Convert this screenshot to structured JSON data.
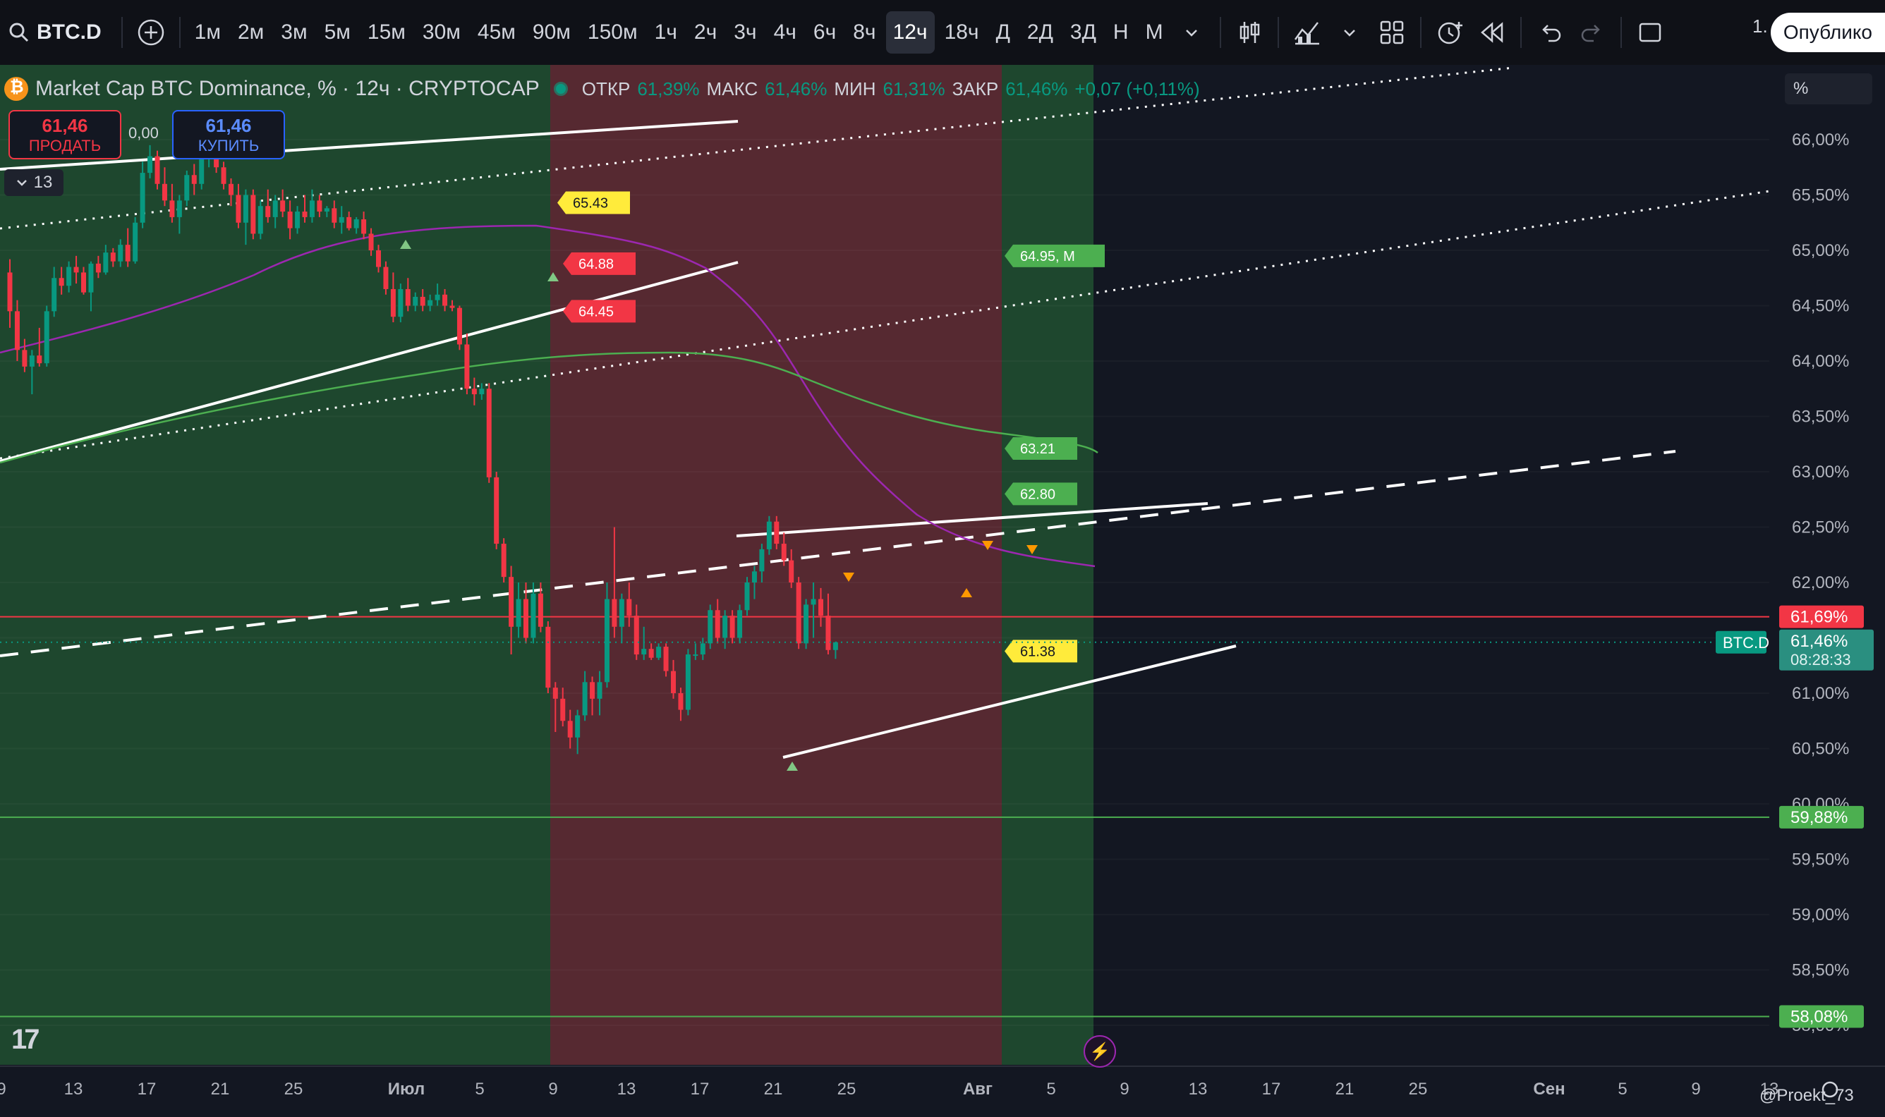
{
  "toolbar": {
    "symbol": "BTC.D",
    "timeframes": [
      {
        "label": "1м",
        "active": false
      },
      {
        "label": "2м",
        "active": false
      },
      {
        "label": "3м",
        "active": false
      },
      {
        "label": "5м",
        "active": false
      },
      {
        "label": "15м",
        "active": false
      },
      {
        "label": "30м",
        "active": false
      },
      {
        "label": "45м",
        "active": false
      },
      {
        "label": "90м",
        "active": false
      },
      {
        "label": "150м",
        "active": false
      },
      {
        "label": "1ч",
        "active": false
      },
      {
        "label": "2ч",
        "active": false
      },
      {
        "label": "3ч",
        "active": false
      },
      {
        "label": "4ч",
        "active": false
      },
      {
        "label": "6ч",
        "active": false
      },
      {
        "label": "8ч",
        "active": false
      },
      {
        "label": "12ч",
        "active": true
      },
      {
        "label": "18ч",
        "active": false
      },
      {
        "label": "Д",
        "active": false
      },
      {
        "label": "2Д",
        "active": false
      },
      {
        "label": "3Д",
        "active": false
      },
      {
        "label": "Н",
        "active": false
      },
      {
        "label": "М",
        "active": false
      }
    ],
    "layout_count": "1.",
    "publish_label": "Опублико"
  },
  "legend": {
    "title": "Market Cap BTC Dominance, % · 12ч · CRYPTOCAP",
    "open_label": "ОТКР",
    "open_value": "61,39%",
    "high_label": "МАКС",
    "high_value": "61,46%",
    "low_label": "МИН",
    "low_value": "61,31%",
    "close_label": "ЗАКР",
    "close_value": "61,46%",
    "change": "+0,07 (+0,11%)"
  },
  "trade": {
    "sell_price": "61,46",
    "sell_label": "ПРОДАТЬ",
    "spread": "0,00",
    "buy_price": "61,46",
    "buy_label": "КУПИТЬ"
  },
  "indicators_collapsed_count": "13",
  "price_scale_unit": "%",
  "credit": "@Proekt_73",
  "colors": {
    "up": "#089981",
    "down": "#f23645",
    "bg": "#131722",
    "green_zone": "#1f4a2f",
    "red_zone": "#5a2a33"
  },
  "chart_data": {
    "type": "candlestick",
    "symbol_tag": "BTC.D",
    "y_ticks": [
      "66,00%",
      "65,50%",
      "65,00%",
      "64,50%",
      "64,00%",
      "63,50%",
      "63,00%",
      "62,50%",
      "62,00%",
      "61,50%",
      "61,00%",
      "60,50%",
      "60,00%",
      "59,50%",
      "59,00%",
      "58,50%",
      "58,00%"
    ],
    "y_tick_values": [
      66.0,
      65.5,
      65.0,
      64.5,
      64.0,
      63.5,
      63.0,
      62.5,
      62.0,
      61.5,
      61.0,
      60.5,
      60.0,
      59.5,
      59.0,
      58.5,
      58.0
    ],
    "ylim": [
      57.75,
      66.6
    ],
    "x_ticks": [
      "9",
      "13",
      "17",
      "21",
      "25",
      "Июл",
      "5",
      "9",
      "13",
      "17",
      "21",
      "25",
      "Авг",
      "5",
      "9",
      "13",
      "17",
      "21",
      "25",
      "Сен",
      "5",
      "9",
      "13"
    ],
    "horizontal_levels": [
      {
        "value": 61.69,
        "label": "61,69%",
        "color": "#f23645"
      },
      {
        "value": 59.88,
        "label": "59,88%",
        "color": "#4caf50"
      },
      {
        "value": 58.08,
        "label": "58,08%",
        "color": "#4caf50"
      }
    ],
    "last_price": {
      "label": "61,46%",
      "value": 61.46,
      "countdown": "08:28:33"
    },
    "zones": [
      {
        "color": "green",
        "from": "2024-06-07",
        "to": "2024-07-09"
      },
      {
        "color": "red",
        "from": "2024-07-09",
        "to": "2024-08-03"
      },
      {
        "color": "green",
        "from": "2024-08-03",
        "to": "2024-08-08"
      }
    ],
    "annotations": [
      {
        "text": "65.43",
        "value": 65.43,
        "color": "#ffeb3b"
      },
      {
        "text": "64.88",
        "value": 64.88,
        "color": "#f23645"
      },
      {
        "text": "64.45",
        "value": 64.45,
        "color": "#f23645"
      },
      {
        "text": "64.95, M",
        "value": 64.95,
        "color": "#4caf50"
      },
      {
        "text": "63.21",
        "value": 63.21,
        "color": "#4caf50"
      },
      {
        "text": "62.80",
        "value": 62.8,
        "color": "#4caf50"
      },
      {
        "text": "61.38",
        "value": 61.38,
        "color": "#ffeb3b"
      }
    ],
    "candles": [
      {
        "o": 64.8,
        "h": 64.92,
        "l": 64.3,
        "c": 64.45
      },
      {
        "o": 64.45,
        "h": 64.55,
        "l": 64.0,
        "c": 64.1
      },
      {
        "o": 64.1,
        "h": 64.2,
        "l": 63.9,
        "c": 63.95
      },
      {
        "o": 63.95,
        "h": 64.1,
        "l": 63.7,
        "c": 64.05
      },
      {
        "o": 64.05,
        "h": 64.3,
        "l": 63.95,
        "c": 63.98
      },
      {
        "o": 63.98,
        "h": 64.5,
        "l": 63.95,
        "c": 64.45
      },
      {
        "o": 64.45,
        "h": 64.85,
        "l": 64.4,
        "c": 64.75
      },
      {
        "o": 64.75,
        "h": 64.85,
        "l": 64.6,
        "c": 64.68
      },
      {
        "o": 64.68,
        "h": 64.9,
        "l": 64.62,
        "c": 64.85
      },
      {
        "o": 64.85,
        "h": 64.95,
        "l": 64.7,
        "c": 64.8
      },
      {
        "o": 64.8,
        "h": 64.85,
        "l": 64.6,
        "c": 64.62
      },
      {
        "o": 64.62,
        "h": 64.9,
        "l": 64.45,
        "c": 64.88
      },
      {
        "o": 64.88,
        "h": 64.95,
        "l": 64.75,
        "c": 64.8
      },
      {
        "o": 64.8,
        "h": 65.05,
        "l": 64.78,
        "c": 64.98
      },
      {
        "o": 64.98,
        "h": 65.02,
        "l": 64.85,
        "c": 64.9
      },
      {
        "o": 64.9,
        "h": 65.1,
        "l": 64.85,
        "c": 65.05
      },
      {
        "o": 65.05,
        "h": 65.2,
        "l": 64.85,
        "c": 64.9
      },
      {
        "o": 64.9,
        "h": 65.3,
        "l": 64.88,
        "c": 65.25
      },
      {
        "o": 65.25,
        "h": 65.8,
        "l": 65.2,
        "c": 65.7
      },
      {
        "o": 65.7,
        "h": 65.95,
        "l": 65.65,
        "c": 65.85
      },
      {
        "o": 65.85,
        "h": 65.9,
        "l": 65.55,
        "c": 65.6
      },
      {
        "o": 65.6,
        "h": 65.75,
        "l": 65.4,
        "c": 65.45
      },
      {
        "o": 65.45,
        "h": 65.6,
        "l": 65.25,
        "c": 65.3
      },
      {
        "o": 65.3,
        "h": 65.5,
        "l": 65.15,
        "c": 65.45
      },
      {
        "o": 65.45,
        "h": 65.72,
        "l": 65.4,
        "c": 65.68
      },
      {
        "o": 65.68,
        "h": 65.78,
        "l": 65.5,
        "c": 65.6
      },
      {
        "o": 65.6,
        "h": 65.9,
        "l": 65.55,
        "c": 65.85
      },
      {
        "o": 65.85,
        "h": 66.0,
        "l": 65.75,
        "c": 65.9
      },
      {
        "o": 65.9,
        "h": 65.95,
        "l": 65.7,
        "c": 65.75
      },
      {
        "o": 65.75,
        "h": 65.8,
        "l": 65.55,
        "c": 65.6
      },
      {
        "o": 65.6,
        "h": 65.65,
        "l": 65.4,
        "c": 65.5
      },
      {
        "o": 65.5,
        "h": 65.6,
        "l": 65.2,
        "c": 65.25
      },
      {
        "o": 65.25,
        "h": 65.55,
        "l": 65.05,
        "c": 65.5
      },
      {
        "o": 65.5,
        "h": 65.55,
        "l": 65.1,
        "c": 65.15
      },
      {
        "o": 65.15,
        "h": 65.45,
        "l": 65.1,
        "c": 65.4
      },
      {
        "o": 65.4,
        "h": 65.55,
        "l": 65.25,
        "c": 65.3
      },
      {
        "o": 65.3,
        "h": 65.5,
        "l": 65.2,
        "c": 65.45
      },
      {
        "o": 65.45,
        "h": 65.55,
        "l": 65.3,
        "c": 65.35
      },
      {
        "o": 65.35,
        "h": 65.45,
        "l": 65.1,
        "c": 65.2
      },
      {
        "o": 65.2,
        "h": 65.4,
        "l": 65.15,
        "c": 65.35
      },
      {
        "o": 65.35,
        "h": 65.5,
        "l": 65.25,
        "c": 65.3
      },
      {
        "o": 65.3,
        "h": 65.55,
        "l": 65.25,
        "c": 65.45
      },
      {
        "o": 65.45,
        "h": 65.5,
        "l": 65.3,
        "c": 65.35
      },
      {
        "o": 65.35,
        "h": 65.4,
        "l": 65.3,
        "c": 65.38
      },
      {
        "o": 65.38,
        "h": 65.45,
        "l": 65.2,
        "c": 65.25
      },
      {
        "o": 65.25,
        "h": 65.4,
        "l": 65.15,
        "c": 65.3
      },
      {
        "o": 65.3,
        "h": 65.35,
        "l": 65.18,
        "c": 65.2
      },
      {
        "o": 65.2,
        "h": 65.3,
        "l": 65.15,
        "c": 65.28
      },
      {
        "o": 65.28,
        "h": 65.35,
        "l": 65.1,
        "c": 65.15
      },
      {
        "o": 65.15,
        "h": 65.2,
        "l": 64.95,
        "c": 65.0
      },
      {
        "o": 65.0,
        "h": 65.05,
        "l": 64.8,
        "c": 64.85
      },
      {
        "o": 64.85,
        "h": 64.9,
        "l": 64.6,
        "c": 64.65
      },
      {
        "o": 64.65,
        "h": 64.8,
        "l": 64.35,
        "c": 64.4
      },
      {
        "o": 64.4,
        "h": 64.7,
        "l": 64.35,
        "c": 64.65
      },
      {
        "o": 64.65,
        "h": 64.75,
        "l": 64.45,
        "c": 64.5
      },
      {
        "o": 64.5,
        "h": 64.62,
        "l": 64.45,
        "c": 64.58
      },
      {
        "o": 64.58,
        "h": 64.65,
        "l": 64.45,
        "c": 64.5
      },
      {
        "o": 64.5,
        "h": 64.6,
        "l": 64.45,
        "c": 64.55
      },
      {
        "o": 64.55,
        "h": 64.7,
        "l": 64.5,
        "c": 64.6
      },
      {
        "o": 64.6,
        "h": 64.65,
        "l": 64.45,
        "c": 64.5
      },
      {
        "o": 64.5,
        "h": 64.55,
        "l": 64.45,
        "c": 64.48
      },
      {
        "o": 64.48,
        "h": 64.5,
        "l": 64.1,
        "c": 64.15
      },
      {
        "o": 64.15,
        "h": 64.25,
        "l": 63.7,
        "c": 63.75
      },
      {
        "o": 63.75,
        "h": 63.85,
        "l": 63.6,
        "c": 63.7
      },
      {
        "o": 63.7,
        "h": 63.8,
        "l": 63.65,
        "c": 63.75
      },
      {
        "o": 63.75,
        "h": 63.8,
        "l": 62.9,
        "c": 62.95
      },
      {
        "o": 62.95,
        "h": 63.0,
        "l": 62.3,
        "c": 62.35
      },
      {
        "o": 62.35,
        "h": 62.4,
        "l": 62.0,
        "c": 62.05
      },
      {
        "o": 62.05,
        "h": 62.15,
        "l": 61.35,
        "c": 61.6
      },
      {
        "o": 61.6,
        "h": 62.0,
        "l": 61.5,
        "c": 61.85
      },
      {
        "o": 61.85,
        "h": 62.0,
        "l": 61.45,
        "c": 61.5
      },
      {
        "o": 61.5,
        "h": 62.0,
        "l": 61.45,
        "c": 61.9
      },
      {
        "o": 61.9,
        "h": 62.0,
        "l": 61.55,
        "c": 61.6
      },
      {
        "o": 61.6,
        "h": 61.65,
        "l": 61.0,
        "c": 61.05
      },
      {
        "o": 61.05,
        "h": 61.1,
        "l": 60.65,
        "c": 60.95
      },
      {
        "o": 60.95,
        "h": 61.05,
        "l": 60.7,
        "c": 60.75
      },
      {
        "o": 60.75,
        "h": 60.85,
        "l": 60.5,
        "c": 60.6
      },
      {
        "o": 60.6,
        "h": 60.85,
        "l": 60.45,
        "c": 60.8
      },
      {
        "o": 60.8,
        "h": 61.2,
        "l": 60.75,
        "c": 61.1
      },
      {
        "o": 61.1,
        "h": 61.15,
        "l": 60.8,
        "c": 60.95
      },
      {
        "o": 60.95,
        "h": 61.2,
        "l": 60.8,
        "c": 61.1
      },
      {
        "o": 61.1,
        "h": 62.0,
        "l": 61.05,
        "c": 61.85
      },
      {
        "o": 61.85,
        "h": 62.5,
        "l": 61.5,
        "c": 61.6
      },
      {
        "o": 61.6,
        "h": 61.9,
        "l": 61.45,
        "c": 61.85
      },
      {
        "o": 61.85,
        "h": 62.0,
        "l": 61.6,
        "c": 61.7
      },
      {
        "o": 61.7,
        "h": 61.8,
        "l": 61.3,
        "c": 61.35
      },
      {
        "o": 61.35,
        "h": 61.6,
        "l": 61.3,
        "c": 61.4
      },
      {
        "o": 61.4,
        "h": 61.45,
        "l": 61.3,
        "c": 61.32
      },
      {
        "o": 61.32,
        "h": 61.45,
        "l": 61.3,
        "c": 61.42
      },
      {
        "o": 61.42,
        "h": 61.45,
        "l": 61.15,
        "c": 61.2
      },
      {
        "o": 61.2,
        "h": 61.3,
        "l": 60.95,
        "c": 61.0
      },
      {
        "o": 61.0,
        "h": 61.05,
        "l": 60.75,
        "c": 60.85
      },
      {
        "o": 60.85,
        "h": 61.4,
        "l": 60.8,
        "c": 61.35
      },
      {
        "o": 61.35,
        "h": 61.45,
        "l": 61.3,
        "c": 61.35
      },
      {
        "o": 61.35,
        "h": 61.5,
        "l": 61.3,
        "c": 61.45
      },
      {
        "o": 61.45,
        "h": 61.8,
        "l": 61.4,
        "c": 61.75
      },
      {
        "o": 61.75,
        "h": 61.85,
        "l": 61.45,
        "c": 61.5
      },
      {
        "o": 61.5,
        "h": 61.75,
        "l": 61.4,
        "c": 61.7
      },
      {
        "o": 61.7,
        "h": 61.75,
        "l": 61.45,
        "c": 61.5
      },
      {
        "o": 61.5,
        "h": 61.8,
        "l": 61.45,
        "c": 61.75
      },
      {
        "o": 61.75,
        "h": 62.05,
        "l": 61.7,
        "c": 62.0
      },
      {
        "o": 62.0,
        "h": 62.15,
        "l": 61.85,
        "c": 62.1
      },
      {
        "o": 62.1,
        "h": 62.35,
        "l": 62.0,
        "c": 62.3
      },
      {
        "o": 62.3,
        "h": 62.6,
        "l": 62.25,
        "c": 62.55
      },
      {
        "o": 62.55,
        "h": 62.6,
        "l": 62.3,
        "c": 62.35
      },
      {
        "o": 62.35,
        "h": 62.45,
        "l": 62.15,
        "c": 62.2
      },
      {
        "o": 62.2,
        "h": 62.3,
        "l": 61.95,
        "c": 62.0
      },
      {
        "o": 62.0,
        "h": 62.05,
        "l": 61.4,
        "c": 61.45
      },
      {
        "o": 61.45,
        "h": 61.85,
        "l": 61.4,
        "c": 61.8
      },
      {
        "o": 61.8,
        "h": 62.0,
        "l": 61.5,
        "c": 61.85
      },
      {
        "o": 61.85,
        "h": 61.95,
        "l": 61.6,
        "c": 61.7
      },
      {
        "o": 61.7,
        "h": 61.9,
        "l": 61.35,
        "c": 61.39
      },
      {
        "o": 61.39,
        "h": 61.46,
        "l": 61.31,
        "c": 61.46
      }
    ]
  }
}
